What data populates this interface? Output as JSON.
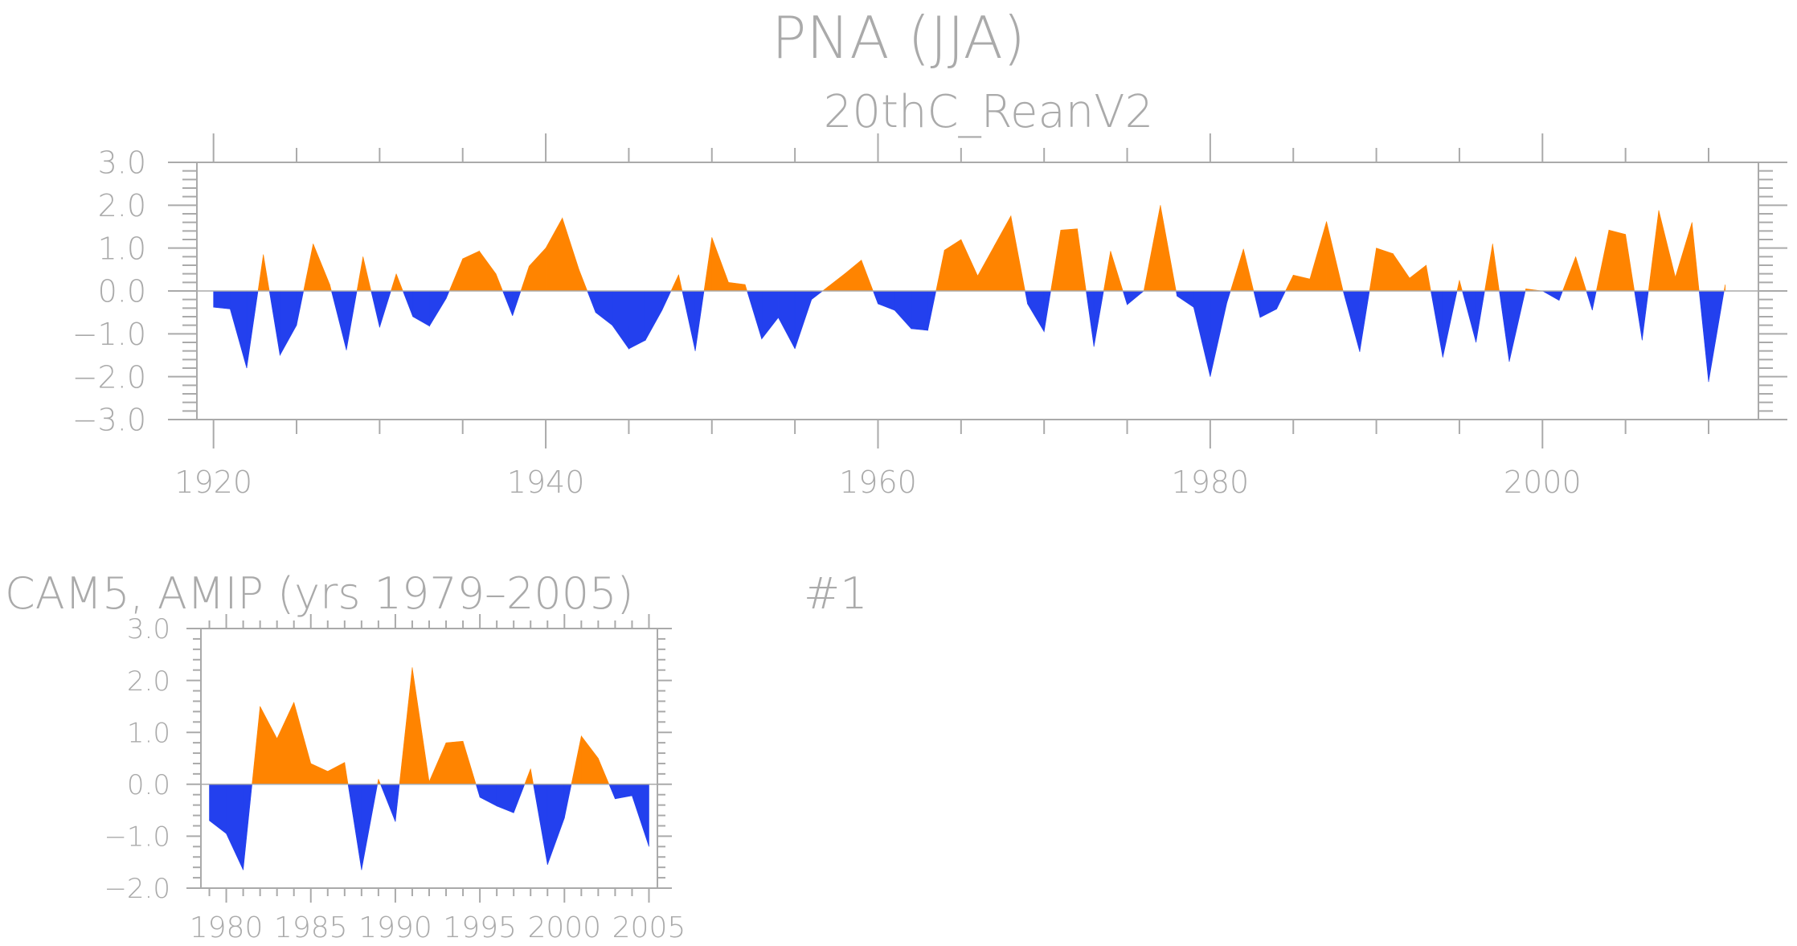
{
  "title": "PNA (JJA)",
  "colors": {
    "positive": "#ff8400",
    "negative": "#2340ee",
    "text": "#aaaaaa"
  },
  "chart_data": [
    {
      "type": "area",
      "subtitle": "20thC_ReanV2",
      "xlabel": "",
      "ylabel": "",
      "xlim": [
        1919,
        2013
      ],
      "ylim": [
        -3.0,
        3.0
      ],
      "y_ticks": [
        "3.0",
        "2.0",
        "1.0",
        "0.0",
        "−1.0",
        "−2.0",
        "−3.0"
      ],
      "x_ticks": [
        "1920",
        "1940",
        "1960",
        "1980",
        "2000"
      ],
      "x": [
        1920,
        1921,
        1922,
        1923,
        1924,
        1925,
        1926,
        1927,
        1928,
        1929,
        1930,
        1931,
        1932,
        1933,
        1934,
        1935,
        1936,
        1937,
        1938,
        1939,
        1940,
        1941,
        1942,
        1943,
        1944,
        1945,
        1946,
        1947,
        1948,
        1949,
        1950,
        1951,
        1952,
        1953,
        1954,
        1955,
        1956,
        1957,
        1958,
        1959,
        1960,
        1961,
        1962,
        1963,
        1964,
        1965,
        1966,
        1967,
        1968,
        1969,
        1970,
        1971,
        1972,
        1973,
        1974,
        1975,
        1976,
        1977,
        1978,
        1979,
        1980,
        1981,
        1982,
        1983,
        1984,
        1985,
        1986,
        1987,
        1988,
        1989,
        1990,
        1991,
        1992,
        1993,
        1994,
        1995,
        1996,
        1997,
        1998,
        1999,
        2000,
        2001,
        2002,
        2003,
        2004,
        2005,
        2006,
        2007,
        2008,
        2009,
        2010,
        2011
      ],
      "values": [
        -0.38,
        -0.42,
        -1.8,
        0.85,
        -1.5,
        -0.8,
        1.1,
        0.15,
        -1.38,
        0.8,
        -0.85,
        0.4,
        -0.6,
        -0.82,
        -0.18,
        0.75,
        0.93,
        0.4,
        -0.58,
        0.58,
        1.0,
        1.7,
        0.5,
        -0.5,
        -0.8,
        -1.35,
        -1.15,
        -0.45,
        0.38,
        -1.4,
        1.25,
        0.2,
        0.15,
        -1.12,
        -0.62,
        -1.35,
        -0.2,
        0.1,
        0.4,
        0.72,
        -0.3,
        -0.45,
        -0.88,
        -0.92,
        0.95,
        1.2,
        0.35,
        1.05,
        1.75,
        -0.3,
        -0.95,
        1.42,
        1.45,
        -1.3,
        0.93,
        -0.32,
        0.0,
        2.0,
        -0.12,
        -0.38,
        -2.0,
        -0.28,
        0.98,
        -0.62,
        -0.42,
        0.37,
        0.28,
        1.62,
        0.0,
        -1.42,
        1.0,
        0.87,
        0.3,
        0.6,
        -1.55,
        0.25,
        -1.2,
        1.1,
        -1.65,
        0.05,
        0.0,
        -0.22,
        0.8,
        -0.45,
        1.42,
        1.32,
        -1.15,
        1.88,
        0.32,
        1.6,
        -2.12,
        0.15
      ],
      "grid": false
    },
    {
      "type": "area",
      "subtitle": "CAM5, AMIP (yrs 1979–2005)",
      "annotation": "#1",
      "xlabel": "",
      "ylabel": "",
      "xlim": [
        1978.5,
        2005.5
      ],
      "ylim": [
        -2.0,
        3.0
      ],
      "y_ticks": [
        "3.0",
        "2.0",
        "1.0",
        "0.0",
        "−1.0",
        "−2.0"
      ],
      "x_ticks": [
        "1980",
        "1985",
        "1990",
        "1995",
        "2000",
        "2005"
      ],
      "x": [
        1979,
        1980,
        1981,
        1982,
        1983,
        1984,
        1985,
        1986,
        1987,
        1988,
        1989,
        1990,
        1991,
        1992,
        1993,
        1994,
        1995,
        1996,
        1997,
        1998,
        1999,
        2000,
        2001,
        2002,
        2003,
        2004,
        2005
      ],
      "values": [
        -0.7,
        -0.95,
        -1.65,
        1.5,
        0.88,
        1.58,
        0.4,
        0.25,
        0.42,
        -1.65,
        0.1,
        -0.72,
        2.25,
        0.05,
        0.8,
        0.83,
        -0.25,
        -0.42,
        -0.55,
        0.3,
        -1.55,
        -0.65,
        0.93,
        0.5,
        -0.28,
        -0.22,
        -1.2
      ],
      "grid": false
    }
  ]
}
